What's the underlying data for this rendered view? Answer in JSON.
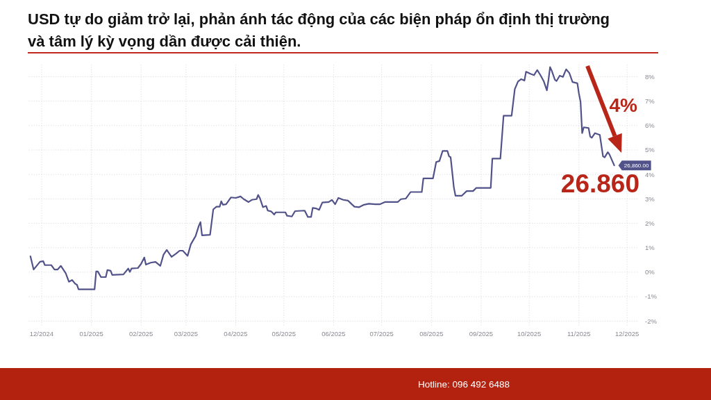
{
  "chart_data": {
    "type": "line",
    "title": "USD tự do giảm trở lại, phản ánh tác động của các biện pháp ổn định thị trường và tâm lý kỳ vọng dần được cải thiện.",
    "x": [
      "2024-11-24",
      "2024-11-26",
      "2024-11-30",
      "2024-12-02",
      "2024-12-03",
      "2024-12-07",
      "2024-12-09",
      "2024-12-11",
      "2024-12-13",
      "2024-12-15",
      "2024-12-16",
      "2024-12-18",
      "2024-12-20",
      "2024-12-22",
      "2024-12-23",
      "2024-12-24",
      "2025-01-03",
      "2025-01-04",
      "2025-01-05",
      "2025-01-07",
      "2025-01-10",
      "2025-01-11",
      "2025-01-13",
      "2025-01-14",
      "2025-01-21",
      "2025-01-24",
      "2025-01-25",
      "2025-01-26",
      "2025-01-30",
      "2025-02-01",
      "2025-02-03",
      "2025-02-04",
      "2025-02-07",
      "2025-02-10",
      "2025-02-13",
      "2025-02-15",
      "2025-02-17",
      "2025-02-20",
      "2025-02-23",
      "2025-02-25",
      "2025-02-27",
      "2025-03-02",
      "2025-03-04",
      "2025-03-07",
      "2025-03-09",
      "2025-03-10",
      "2025-03-11",
      "2025-03-16",
      "2025-03-18",
      "2025-03-20",
      "2025-03-22",
      "2025-03-23",
      "2025-03-24",
      "2025-03-26",
      "2025-03-29",
      "2025-04-01",
      "2025-04-04",
      "2025-04-06",
      "2025-04-09",
      "2025-04-11",
      "2025-04-14",
      "2025-04-15",
      "2025-04-16",
      "2025-04-18",
      "2025-04-20",
      "2025-04-21",
      "2025-04-23",
      "2025-04-25",
      "2025-04-26",
      "2025-05-02",
      "2025-05-03",
      "2025-05-06",
      "2025-05-08",
      "2025-05-14",
      "2025-05-16",
      "2025-05-18",
      "2025-05-19",
      "2025-05-21",
      "2025-05-23",
      "2025-05-25",
      "2025-05-29",
      "2025-05-31",
      "2025-06-02",
      "2025-06-04",
      "2025-06-07",
      "2025-06-10",
      "2025-06-14",
      "2025-06-17",
      "2025-06-20",
      "2025-06-23",
      "2025-06-27",
      "2025-06-30",
      "2025-07-03",
      "2025-07-11",
      "2025-07-13",
      "2025-07-16",
      "2025-07-19",
      "2025-07-26",
      "2025-07-27",
      "2025-08-02",
      "2025-08-04",
      "2025-08-06",
      "2025-08-08",
      "2025-08-11",
      "2025-08-12",
      "2025-08-13",
      "2025-08-15",
      "2025-08-16",
      "2025-08-20",
      "2025-08-23",
      "2025-08-27",
      "2025-08-29",
      "2025-09-07",
      "2025-09-08",
      "2025-09-13",
      "2025-09-15",
      "2025-09-20",
      "2025-09-22",
      "2025-09-24",
      "2025-09-26",
      "2025-09-28",
      "2025-09-29",
      "2025-10-02",
      "2025-10-04",
      "2025-10-05",
      "2025-10-06",
      "2025-10-08",
      "2025-10-10",
      "2025-10-12",
      "2025-10-13",
      "2025-10-14",
      "2025-10-15",
      "2025-10-17",
      "2025-10-18",
      "2025-10-20",
      "2025-10-22",
      "2025-10-24",
      "2025-10-26",
      "2025-10-28",
      "2025-10-31",
      "2025-11-01",
      "2025-11-02",
      "2025-11-03",
      "2025-11-04",
      "2025-11-07",
      "2025-11-08",
      "2025-11-09",
      "2025-11-11",
      "2025-11-14",
      "2025-11-16",
      "2025-11-17",
      "2025-11-19",
      "2025-11-20",
      "2025-11-23"
    ],
    "values": [
      0.65,
      0.11,
      0.43,
      0.45,
      0.29,
      0.29,
      0.11,
      0.11,
      0.26,
      0.06,
      -0.04,
      -0.39,
      -0.32,
      -0.48,
      -0.51,
      -0.7,
      -0.7,
      0.03,
      0.03,
      -0.2,
      -0.2,
      0.09,
      0.06,
      -0.11,
      -0.09,
      0.15,
      0.01,
      0.15,
      0.17,
      0.34,
      0.6,
      0.31,
      0.39,
      0.42,
      0.26,
      0.72,
      0.91,
      0.63,
      0.77,
      0.88,
      0.88,
      0.67,
      1.14,
      1.48,
      1.9,
      2.05,
      1.51,
      1.53,
      2.57,
      2.68,
      2.68,
      2.9,
      2.76,
      2.78,
      3.06,
      3.04,
      3.1,
      2.99,
      2.87,
      2.96,
      2.99,
      3.16,
      3.04,
      2.66,
      2.71,
      2.52,
      2.49,
      2.36,
      2.45,
      2.45,
      2.31,
      2.28,
      2.5,
      2.52,
      2.26,
      2.26,
      2.63,
      2.61,
      2.55,
      2.85,
      2.87,
      2.96,
      2.78,
      3.04,
      2.96,
      2.93,
      2.68,
      2.66,
      2.76,
      2.8,
      2.78,
      2.78,
      2.87,
      2.87,
      2.99,
      3.01,
      3.28,
      3.28,
      3.84,
      3.84,
      4.51,
      4.55,
      4.96,
      4.96,
      4.74,
      4.7,
      3.47,
      3.13,
      3.13,
      3.32,
      3.32,
      3.45,
      3.45,
      4.65,
      4.65,
      6.4,
      6.4,
      7.49,
      7.8,
      7.9,
      7.84,
      8.2,
      8.11,
      8.06,
      8.17,
      8.27,
      8.06,
      7.82,
      7.44,
      7.87,
      8.39,
      8.25,
      7.87,
      7.82,
      8.04,
      7.99,
      8.3,
      8.15,
      7.78,
      7.73,
      7.3,
      6.97,
      5.69,
      5.93,
      5.9,
      5.55,
      5.5,
      5.69,
      5.62,
      4.74,
      4.7,
      4.91,
      4.82,
      4.37
    ],
    "color": "#52528a",
    "xlim": [
      "2024-11-23",
      "2025-12-08"
    ],
    "xticks": [
      {
        "value": "2024-12-01",
        "label": "12/2024"
      },
      {
        "value": "2025-01-01",
        "label": "01/2025"
      },
      {
        "value": "2025-02-01",
        "label": "02/2025"
      },
      {
        "value": "2025-03-01",
        "label": "03/2025"
      },
      {
        "value": "2025-04-01",
        "label": "04/2025"
      },
      {
        "value": "2025-05-01",
        "label": "05/2025"
      },
      {
        "value": "2025-06-01",
        "label": "06/2025"
      },
      {
        "value": "2025-07-01",
        "label": "07/2025"
      },
      {
        "value": "2025-08-01",
        "label": "08/2025"
      },
      {
        "value": "2025-09-01",
        "label": "09/2025"
      },
      {
        "value": "2025-10-01",
        "label": "10/2025"
      },
      {
        "value": "2025-11-01",
        "label": "11/2025"
      },
      {
        "value": "2025-12-01",
        "label": "12/2025"
      }
    ],
    "ylim": [
      -2.2,
      8.5
    ],
    "yticks": [
      {
        "value": -2,
        "label": "-2%"
      },
      {
        "value": -1,
        "label": "-1%"
      },
      {
        "value": 0,
        "label": "0%"
      },
      {
        "value": 1,
        "label": "1%"
      },
      {
        "value": 2,
        "label": "2%"
      },
      {
        "value": 3,
        "label": "3%"
      },
      {
        "value": 4,
        "label": "4%"
      },
      {
        "value": 5,
        "label": "5%"
      },
      {
        "value": 6,
        "label": "6%"
      },
      {
        "value": 7,
        "label": "7%"
      },
      {
        "value": 8,
        "label": "8%"
      }
    ],
    "grid": true,
    "annotations": [
      "4%",
      "26.860",
      {
        "text": "26,860.00",
        "x": "2025-11-23",
        "y": 4.37
      },
      "Hotline: 096 492 6488"
    ]
  }
}
